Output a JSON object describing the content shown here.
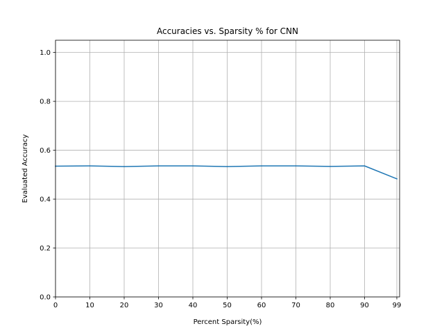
{
  "chart_data": {
    "type": "line",
    "title": "Accuracies vs. Sparsity % for CNN",
    "xlabel": "Percent Sparsity(%)",
    "ylabel": "Evaluated Accuracy",
    "x_tick_labels": [
      "0",
      "10",
      "20",
      "30",
      "40",
      "50",
      "60",
      "70",
      "80",
      "90",
      "99"
    ],
    "y_ticks": [
      0.0,
      0.2,
      0.4,
      0.6,
      0.8,
      1.0
    ],
    "y_tick_labels": [
      "0.0",
      "0.2",
      "0.4",
      "0.6",
      "0.8",
      "1.0"
    ],
    "ylim": [
      0.0,
      1.05
    ],
    "grid": true,
    "series": [
      {
        "color": "#1f77b4",
        "x": [
          0,
          10,
          20,
          30,
          40,
          50,
          60,
          70,
          80,
          90,
          99
        ],
        "values": [
          0.535,
          0.536,
          0.533,
          0.536,
          0.536,
          0.533,
          0.536,
          0.536,
          0.534,
          0.536,
          0.483
        ]
      }
    ]
  }
}
